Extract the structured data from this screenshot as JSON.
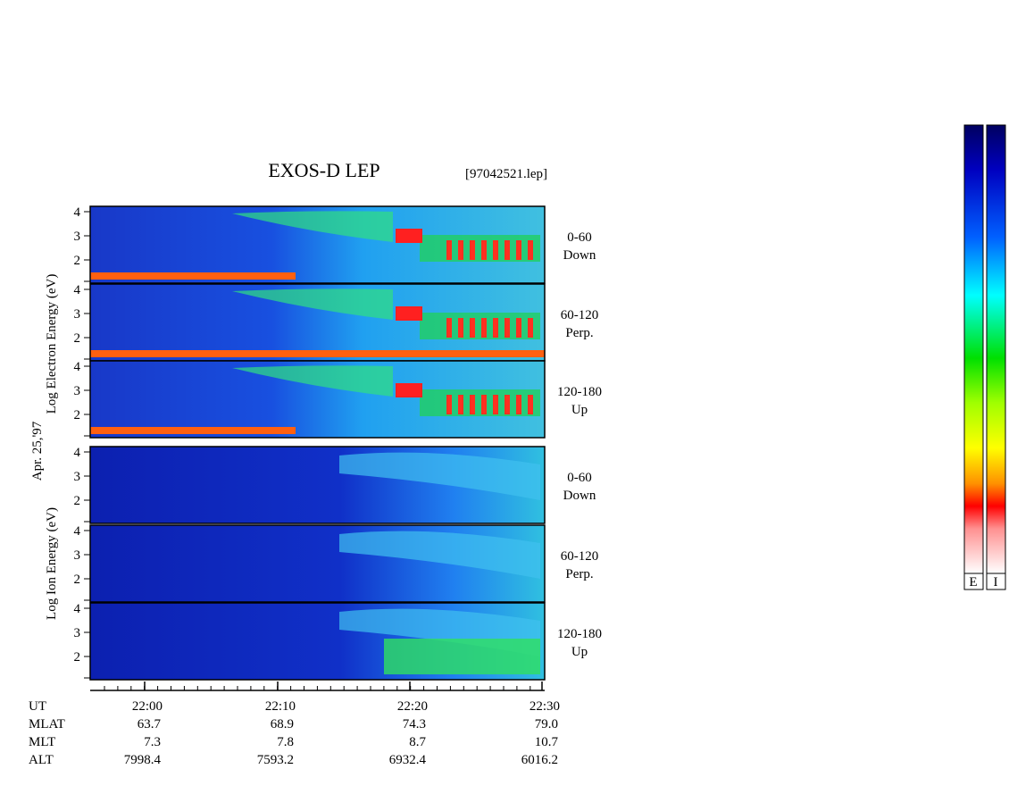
{
  "title": "EXOS-D LEP",
  "file": "[97042521.lep]",
  "date_label": "Apr. 25,'97",
  "electron_axis_label": "Log Electron Energy (eV)",
  "ion_axis_label": "Log Ion Energy (eV)",
  "energy_ticks": [
    "4",
    "3",
    "2"
  ],
  "panels": [
    {
      "range": "0-60",
      "direction": "Down"
    },
    {
      "range": "60-120",
      "direction": "Perp."
    },
    {
      "range": "120-180",
      "direction": "Up"
    },
    {
      "range": "0-60",
      "direction": "Down"
    },
    {
      "range": "60-120",
      "direction": "Perp."
    },
    {
      "range": "120-180",
      "direction": "Up"
    }
  ],
  "orbit_table": {
    "rows": [
      [
        "UT",
        "22:00",
        "22:10",
        "22:20",
        "22:30"
      ],
      [
        "MLAT",
        "63.7",
        "68.9",
        "74.3",
        "79.0"
      ],
      [
        "MLT",
        "7.3",
        "7.8",
        "8.7",
        "10.7"
      ],
      [
        "ALT",
        "7998.4",
        "7593.2",
        "6932.4",
        "6016.2"
      ]
    ]
  },
  "colorbar_labels": [
    "E",
    "I"
  ]
}
